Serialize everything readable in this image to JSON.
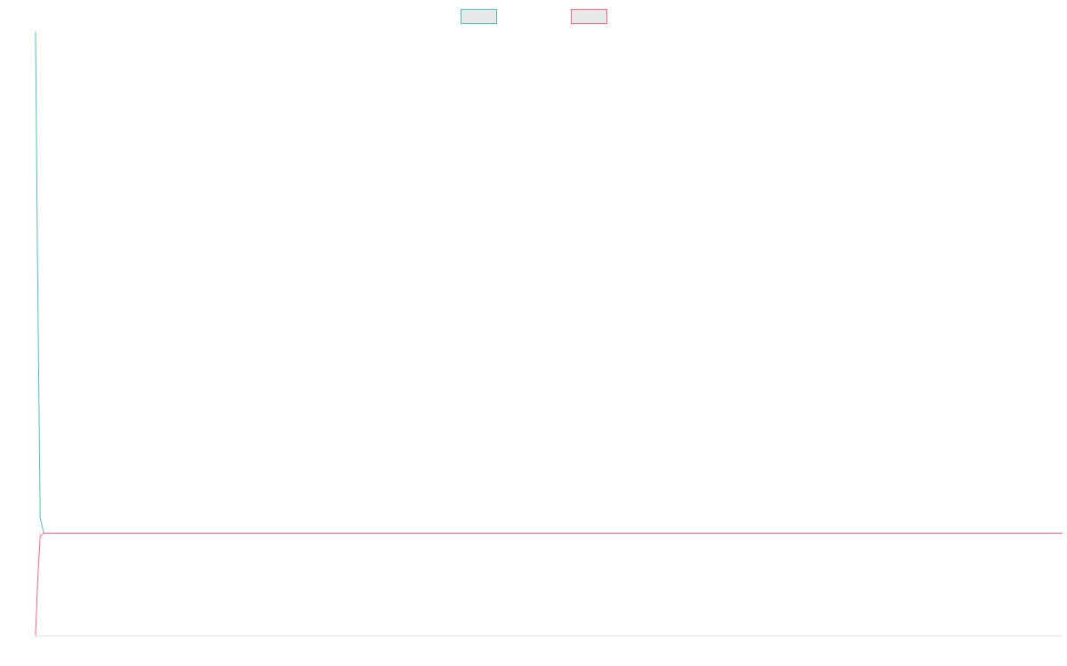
{
  "chart_data": {
    "type": "line",
    "title": "",
    "xlabel": "",
    "ylabel": "",
    "grid": false,
    "legend_position": "top-center",
    "xlim": [
      0,
      100
    ],
    "ylim": [
      0,
      100
    ],
    "x": [
      0,
      0.2,
      0.45,
      0.8,
      100
    ],
    "series": [
      {
        "color": "#4bc0c0",
        "fill": "#e8e8e8",
        "values": [
          100,
          60,
          19.5,
          17,
          17
        ]
      },
      {
        "color": "#ff6384",
        "fill": "#e8e8e8",
        "values": [
          0,
          9,
          16.5,
          17,
          17
        ]
      }
    ]
  }
}
